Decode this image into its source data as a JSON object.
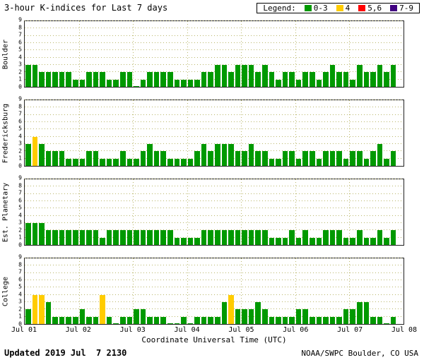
{
  "title": "3-hour K-indices for Last 7 days",
  "legend": {
    "label": "Legend:",
    "items": [
      {
        "label": "0-3",
        "color": "#009900"
      },
      {
        "label": "4",
        "color": "#ffcc00"
      },
      {
        "label": "5,6",
        "color": "#ff0000"
      },
      {
        "label": "7-9",
        "color": "#400080"
      }
    ]
  },
  "xlabel": "Coordinate Universal Time (UTC)",
  "x_ticks": [
    "Jul 01",
    "Jul 02",
    "Jul 03",
    "Jul 04",
    "Jul 05",
    "Jul 06",
    "Jul 07",
    "Jul 08"
  ],
  "footer": {
    "updated": "Updated 2019 Jul  7 2130",
    "credit": "NOAA/SWPC Boulder, CO USA"
  },
  "chart_data": {
    "type": "bar",
    "title": "3-hour K-indices for Last 7 days",
    "xlabel": "Coordinate Universal Time (UTC)",
    "ylim": [
      0,
      9
    ],
    "y_ticks": [
      0,
      1,
      2,
      3,
      4,
      5,
      6,
      7,
      8,
      9
    ],
    "days": 7,
    "bars_per_day": 8,
    "interval_hours": 3,
    "x_day_labels": [
      "Jul 01",
      "Jul 02",
      "Jul 03",
      "Jul 04",
      "Jul 05",
      "Jul 06",
      "Jul 07",
      "Jul 08"
    ],
    "color_rules": {
      "0-3": "#009900",
      "4": "#ffcc00",
      "5-6": "#ff0000",
      "7-9": "#400080"
    },
    "grid": true,
    "series": [
      {
        "name": "Boulder",
        "values": [
          3,
          3,
          2,
          2,
          2,
          2,
          2,
          1,
          1,
          2,
          2,
          2,
          1,
          1,
          2,
          2,
          0,
          1,
          2,
          2,
          2,
          2,
          1,
          1,
          1,
          1,
          2,
          2,
          3,
          3,
          2,
          3,
          3,
          3,
          2,
          3,
          2,
          1,
          2,
          2,
          1,
          2,
          2,
          1,
          2,
          3,
          2,
          2,
          1,
          3,
          2,
          2,
          3,
          2,
          3
        ]
      },
      {
        "name": "Fredericksburg",
        "values": [
          3,
          4,
          3,
          2,
          2,
          2,
          1,
          1,
          1,
          2,
          2,
          1,
          1,
          1,
          2,
          1,
          1,
          2,
          3,
          2,
          2,
          1,
          1,
          1,
          1,
          2,
          3,
          2,
          3,
          3,
          3,
          2,
          2,
          3,
          2,
          2,
          1,
          1,
          2,
          2,
          1,
          2,
          2,
          1,
          2,
          2,
          2,
          1,
          2,
          2,
          1,
          2,
          3,
          1,
          2
        ]
      },
      {
        "name": "Est. Planetary",
        "values": [
          3,
          3,
          3,
          2,
          2,
          2,
          2,
          2,
          2,
          2,
          2,
          1,
          2,
          2,
          2,
          2,
          2,
          2,
          2,
          2,
          2,
          2,
          1,
          1,
          1,
          1,
          2,
          2,
          2,
          2,
          2,
          2,
          2,
          2,
          2,
          2,
          1,
          1,
          1,
          2,
          1,
          2,
          1,
          1,
          2,
          2,
          2,
          1,
          1,
          2,
          1,
          1,
          2,
          1,
          2
        ]
      },
      {
        "name": "College",
        "values": [
          2,
          4,
          4,
          3,
          1,
          1,
          1,
          1,
          2,
          1,
          1,
          4,
          1,
          0,
          1,
          1,
          2,
          2,
          1,
          1,
          1,
          0,
          0,
          1,
          0,
          1,
          1,
          1,
          1,
          3,
          4,
          2,
          2,
          2,
          3,
          2,
          1,
          1,
          1,
          1,
          2,
          2,
          1,
          1,
          1,
          1,
          1,
          2,
          2,
          3,
          3,
          1,
          1,
          0,
          1
        ]
      }
    ]
  }
}
